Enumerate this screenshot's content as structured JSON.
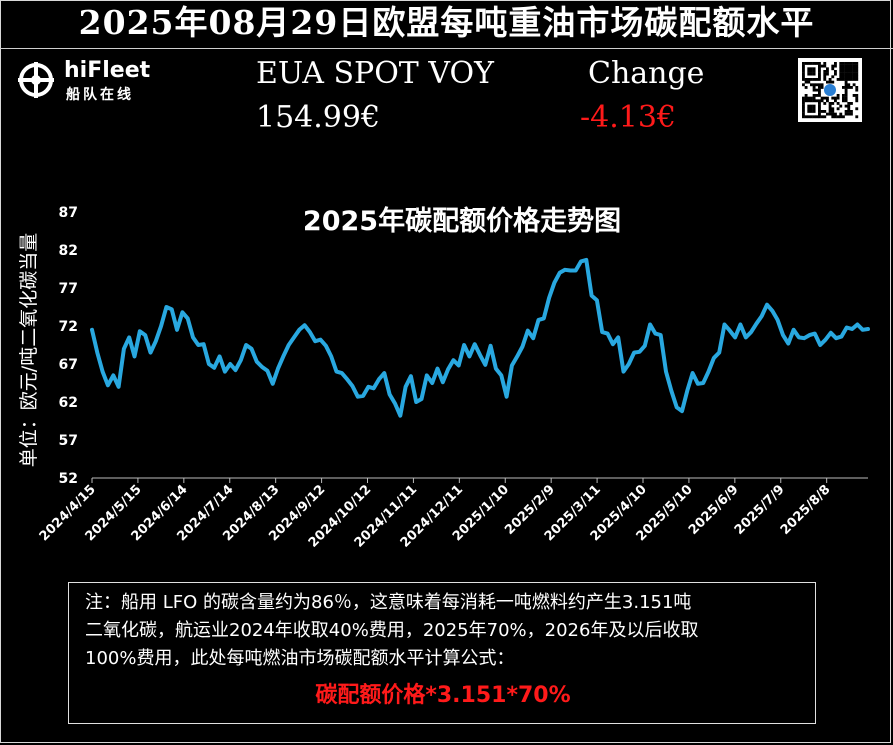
{
  "header": {
    "title": "2025年08月29日欧盟每吨重油市场碳配额水平",
    "logo": {
      "name": "hiFleet",
      "subtitle": "船队在线"
    },
    "spot_label": "EUA SPOT VOY",
    "spot_value": "154.99€",
    "change_label": "Change",
    "change_value": "-4.13€",
    "change_color": "#ff1a1a",
    "qr_icon": "qr-code-icon"
  },
  "chart_data": {
    "type": "line",
    "title": "2025年碳配额价格走势图",
    "ylabel": "单位：欧元/吨二氧化碳当量",
    "xlabel": "",
    "ylim": [
      52,
      87
    ],
    "yticks": [
      87,
      82,
      77,
      72,
      67,
      62,
      57,
      52
    ],
    "xticks": [
      "2024/4/15",
      "2024/5/15",
      "2024/6/14",
      "2024/7/14",
      "2024/8/13",
      "2024/9/12",
      "2024/10/12",
      "2024/11/11",
      "2024/12/11",
      "2025/1/10",
      "2025/2/9",
      "2025/3/11",
      "2025/4/10",
      "2025/5/10",
      "2025/6/9",
      "2025/7/9",
      "2025/8/8"
    ],
    "grid": false,
    "line_color": "#29a8e0",
    "series": [
      {
        "values": [
          71.5,
          68.5,
          66,
          64.2,
          65.5,
          64,
          69,
          70.5,
          68,
          71.3,
          70.8,
          68.5,
          70,
          72,
          74.5,
          74.2,
          71.5,
          73.8,
          73,
          70.5,
          69.5,
          69.6,
          67,
          66.5,
          68,
          66,
          67,
          66.2,
          67.5,
          69.5,
          69,
          67.3,
          66.6,
          66.1,
          64.4,
          66.4,
          68,
          69.5,
          70.5,
          71.5,
          72.1,
          71.2,
          70,
          70.2,
          69.4,
          68,
          66,
          65.8,
          65,
          64.1,
          62.7,
          62.8,
          64,
          63.8,
          65,
          65.8,
          63,
          61.8,
          60.2,
          64,
          65.4,
          62,
          62.4,
          65.5,
          64.5,
          66.4,
          64.6,
          66.3,
          67.5,
          66.8,
          69.5,
          68,
          69.6,
          68.2,
          66.9,
          69.4,
          66.4,
          65.5,
          62.7,
          66.8,
          68,
          69.3,
          71.4,
          70.4,
          72.8,
          73,
          75.7,
          77.7,
          79,
          79.4,
          79.3,
          79.3,
          80.5,
          80.7,
          76,
          75.4,
          71.2,
          71,
          69.6,
          70.5,
          66,
          67,
          68.5,
          68.6,
          69.4,
          72.2,
          71,
          70.8,
          66,
          63.5,
          61.3,
          60.8,
          63.5,
          65.8,
          64.4,
          64.5,
          66,
          67.8,
          68.5,
          72.2,
          71.4,
          70.5,
          72.2,
          70.5,
          71.2,
          72.3,
          73.3,
          74.8,
          74,
          72.8,
          70.8,
          69.7,
          71.5,
          70.5,
          70.4,
          70.8,
          71,
          69.5,
          70.2,
          71.1,
          70.4,
          70.6,
          71.8,
          71.6,
          72.2,
          71.5,
          71.6
        ]
      }
    ]
  },
  "note": {
    "line1": "注：船用 LFO 的碳含量约为86％，这意味着每消耗一吨燃料约产生3.151吨",
    "line2": "二氧化碳，航运业2024年收取40%费用，2025年70%，2026年及以后收取",
    "line3": "100%费用，此处每吨燃油市场碳配额水平计算公式：",
    "formula": "碳配额价格*3.151*70%"
  }
}
